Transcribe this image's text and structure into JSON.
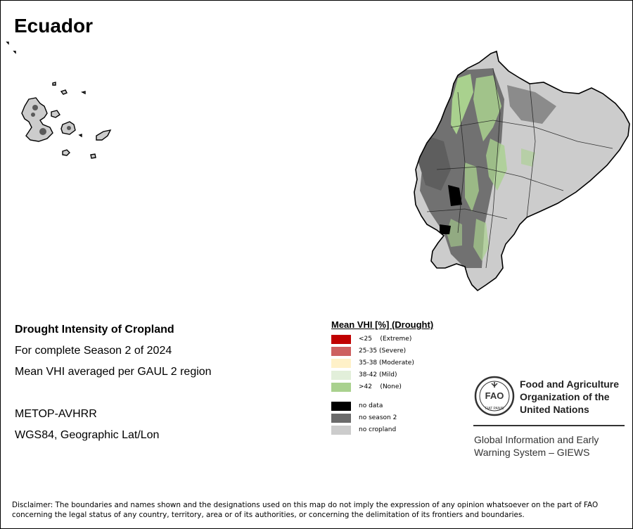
{
  "map": {
    "country": "Ecuador",
    "subject": "Drought Intensity of Cropland",
    "period": "For complete Season 2 of 2024",
    "method": "Mean VHI averaged per GAUL 2 region",
    "sensor": "METOP-AVHRR",
    "projection": "WGS84, Geographic Lat/Lon",
    "colors": {
      "extreme": "#c00000",
      "severe": "#cd6060",
      "moderate": "#fff1c8",
      "mild": "#e2efda",
      "none": "#a9d18e",
      "no_data": "#000000",
      "no_season": "#6b6b6b",
      "no_cropland": "#cccccc"
    }
  },
  "legend": {
    "title": "Mean VHI [%] (Drought)",
    "items": [
      {
        "label": "<25    (Extreme)",
        "color": "#c00000",
        "icon": "legend-extreme"
      },
      {
        "label": "25-35 (Severe)",
        "color": "#cd6060",
        "icon": "legend-severe"
      },
      {
        "label": "35-38 (Moderate)",
        "color": "#fff1c8",
        "icon": "legend-moderate"
      },
      {
        "label": "38-42 (Mild)",
        "color": "#e2efda",
        "icon": "legend-mild"
      },
      {
        "label": ">42    (None)",
        "color": "#a9d18e",
        "icon": "legend-none"
      },
      {
        "label": "no data",
        "color": "#000000",
        "icon": "legend-no-data"
      },
      {
        "label": "no season 2",
        "color": "#6b6b6b",
        "icon": "legend-no-season"
      },
      {
        "label": "no cropland",
        "color": "#cccccc",
        "icon": "legend-no-cropland"
      }
    ]
  },
  "org": {
    "name_line1": "Food and Agriculture",
    "name_line2": "Organization of the",
    "name_line3": "United Nations",
    "system_line1": "Global Information and Early",
    "system_line2": "Warning System – GIEWS",
    "logo_text": "FAO",
    "logo_motto": "FIAT PANIS"
  },
  "disclaimer": {
    "line1": "Disclaimer: The boundaries and names shown and the designations used on this map do not imply the expression of any opinion whatsoever on the part of FAO",
    "line2": "concerning the legal status of any country, territory, area or of its authorities, or concerning the delimitation of its frontiers and boundaries."
  }
}
